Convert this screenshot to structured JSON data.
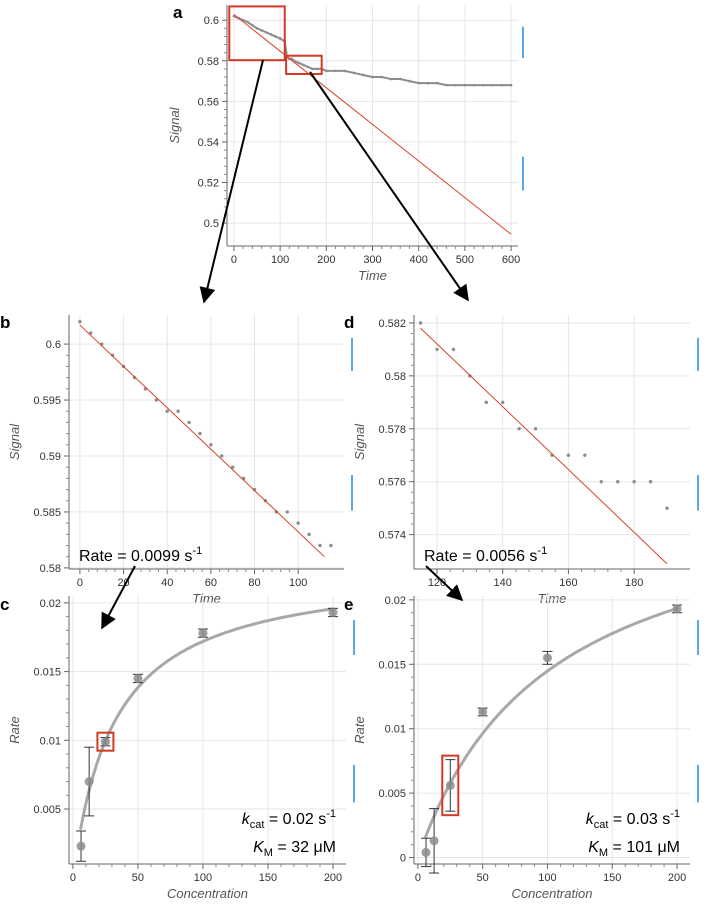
{
  "colors": {
    "fit": "#d9412b",
    "points": "#8c8c8c",
    "michaelis": "#a8a8a8",
    "grid": "#e6e6e6",
    "zoom_box": "#d23a26",
    "side_bar": "#5aa9e6"
  },
  "chart_data": [
    {
      "id": "a",
      "panel_label": "a",
      "type": "line",
      "xlabel": "Time",
      "ylabel": "Signal",
      "xlim": [
        -15,
        615
      ],
      "ylim": [
        0.4887,
        0.6075
      ],
      "xticks": [
        0,
        100,
        200,
        300,
        400,
        500,
        600
      ],
      "yticks": [
        0.5,
        0.52,
        0.54,
        0.56,
        0.58,
        0.6
      ],
      "ytick_labels": [
        "0.5",
        "0.52",
        "0.54",
        "0.56",
        "0.58",
        "0.6"
      ],
      "grid": true,
      "series": [
        {
          "kind": "points",
          "x": [
            0,
            10,
            20,
            30,
            40,
            50,
            60,
            70,
            80,
            90,
            100,
            110,
            115,
            120,
            125,
            130,
            140,
            150,
            160,
            170,
            180,
            190,
            200,
            220,
            240,
            260,
            280,
            300,
            320,
            340,
            360,
            380,
            400,
            420,
            440,
            460,
            480,
            500,
            520,
            540,
            560,
            580,
            600
          ],
          "y": [
            0.602,
            0.601,
            0.6,
            0.599,
            0.5975,
            0.596,
            0.595,
            0.594,
            0.593,
            0.592,
            0.591,
            0.5895,
            0.582,
            0.581,
            0.581,
            0.58,
            0.579,
            0.578,
            0.577,
            0.576,
            0.576,
            0.576,
            0.575,
            0.575,
            0.575,
            0.574,
            0.573,
            0.572,
            0.572,
            0.571,
            0.571,
            0.57,
            0.569,
            0.569,
            0.569,
            0.568,
            0.568,
            0.568,
            0.568,
            0.568,
            0.568,
            0.568,
            0.568
          ]
        },
        {
          "kind": "fit_line",
          "x": [
            0,
            600
          ],
          "y": [
            0.6028,
            0.4945
          ]
        }
      ],
      "zoom_boxes": [
        {
          "x": [
            -10,
            110
          ],
          "y": [
            0.5803,
            0.6068
          ]
        },
        {
          "x": [
            113,
            190
          ],
          "y": [
            0.5735,
            0.5825
          ]
        }
      ]
    },
    {
      "id": "b",
      "panel_label": "b",
      "type": "scatter",
      "xlabel": "Time",
      "ylabel": "Signal",
      "xlim": [
        -5,
        121
      ],
      "ylim": [
        0.5799,
        0.6026
      ],
      "xticks": [
        0,
        20,
        40,
        60,
        80,
        100
      ],
      "yticks": [
        0.58,
        0.585,
        0.59,
        0.595,
        0.6
      ],
      "ytick_labels": [
        "0.58",
        "0.585",
        "0.59",
        "0.595",
        "0.6"
      ],
      "grid": true,
      "series": [
        {
          "kind": "points",
          "x": [
            0,
            5,
            10,
            15,
            20,
            25,
            30,
            35,
            40,
            45,
            50,
            55,
            60,
            65,
            70,
            75,
            80,
            85,
            90,
            95,
            100,
            105,
            110,
            115
          ],
          "y": [
            0.602,
            0.601,
            0.6,
            0.599,
            0.598,
            0.597,
            0.596,
            0.595,
            0.594,
            0.594,
            0.593,
            0.592,
            0.591,
            0.59,
            0.589,
            0.588,
            0.587,
            0.586,
            0.585,
            0.585,
            0.584,
            0.583,
            0.582,
            0.582
          ]
        },
        {
          "kind": "fit_line",
          "x": [
            0,
            112
          ],
          "y": [
            0.6017,
            0.581
          ]
        }
      ],
      "annotation": {
        "prefix": "Rate = 0.0099 s",
        "sup": "-1"
      }
    },
    {
      "id": "d",
      "panel_label": "d",
      "type": "scatter",
      "xlabel": "Time",
      "ylabel": "Signal",
      "xlim": [
        113,
        197
      ],
      "ylim": [
        0.5727,
        0.5823
      ],
      "xticks": [
        120,
        140,
        160,
        180
      ],
      "yticks": [
        0.574,
        0.576,
        0.578,
        0.58,
        0.582
      ],
      "ytick_labels": [
        "0.574",
        "0.576",
        "0.578",
        "0.58",
        "0.582"
      ],
      "grid": true,
      "series": [
        {
          "kind": "points",
          "x": [
            115,
            120,
            125,
            130,
            135,
            140,
            145,
            150,
            155,
            160,
            165,
            170,
            175,
            180,
            185,
            190
          ],
          "y": [
            0.582,
            0.581,
            0.581,
            0.58,
            0.579,
            0.579,
            0.578,
            0.578,
            0.577,
            0.577,
            0.577,
            0.576,
            0.576,
            0.576,
            0.576,
            0.575
          ]
        },
        {
          "kind": "fit_line",
          "x": [
            115,
            190
          ],
          "y": [
            0.5818,
            0.5729
          ]
        }
      ],
      "annotation": {
        "prefix": "Rate = 0.0056 s",
        "sup": "-1"
      }
    },
    {
      "id": "c",
      "panel_label": "c",
      "type": "scatter",
      "xlabel": "Concentration",
      "ylabel": "Rate",
      "xlim": [
        -3,
        210
      ],
      "ylim": [
        0.001,
        0.0205
      ],
      "xticks": [
        0,
        50,
        100,
        150,
        200
      ],
      "yticks": [
        0.005,
        0.01,
        0.015,
        0.02
      ],
      "ytick_labels": [
        "0.005",
        "0.01",
        "0.015",
        "0.02"
      ],
      "grid": true,
      "series": [
        {
          "kind": "points_with_error",
          "x": [
            6.25,
            12.5,
            25,
            50,
            100,
            200
          ],
          "y": [
            0.0023,
            0.007,
            0.0099,
            0.0145,
            0.0178,
            0.0193
          ],
          "err": [
            0.0011,
            0.0025,
            0.0003,
            0.0003,
            0.0003,
            0.0003
          ]
        },
        {
          "kind": "michaelis_menten",
          "vmax": 0.0227,
          "km": 32,
          "x_range": [
            6,
            200
          ]
        }
      ],
      "highlight_index": 2,
      "annotation": {
        "kcat_value": " = 0.02 s",
        "kcat_sup": "-1",
        "km_value": " = 32 μM"
      }
    },
    {
      "id": "e",
      "panel_label": "e",
      "type": "scatter",
      "xlabel": "Concentration",
      "ylabel": "Rate",
      "xlim": [
        -3,
        210
      ],
      "ylim": [
        -0.0005,
        0.0203
      ],
      "xticks": [
        0,
        50,
        100,
        150,
        200
      ],
      "yticks": [
        0,
        0.005,
        0.01,
        0.015,
        0.02
      ],
      "ytick_labels": [
        "0",
        "0.005",
        "0.01",
        "0.015",
        "0.02"
      ],
      "grid": true,
      "series": [
        {
          "kind": "points_with_error",
          "x": [
            6.25,
            12.5,
            25,
            50,
            100,
            200
          ],
          "y": [
            0.0004,
            0.0013,
            0.0056,
            0.0113,
            0.0155,
            0.0193
          ],
          "err": [
            0.0011,
            0.0025,
            0.002,
            0.0003,
            0.0005,
            0.0003
          ]
        },
        {
          "kind": "michaelis_menten",
          "vmax": 0.0291,
          "km": 101,
          "x_range": [
            6,
            200
          ]
        }
      ],
      "highlight_index": 2,
      "annotation": {
        "kcat_value": " = 0.03 s",
        "kcat_sup": "-1",
        "km_value": " = 101 μM"
      }
    }
  ]
}
